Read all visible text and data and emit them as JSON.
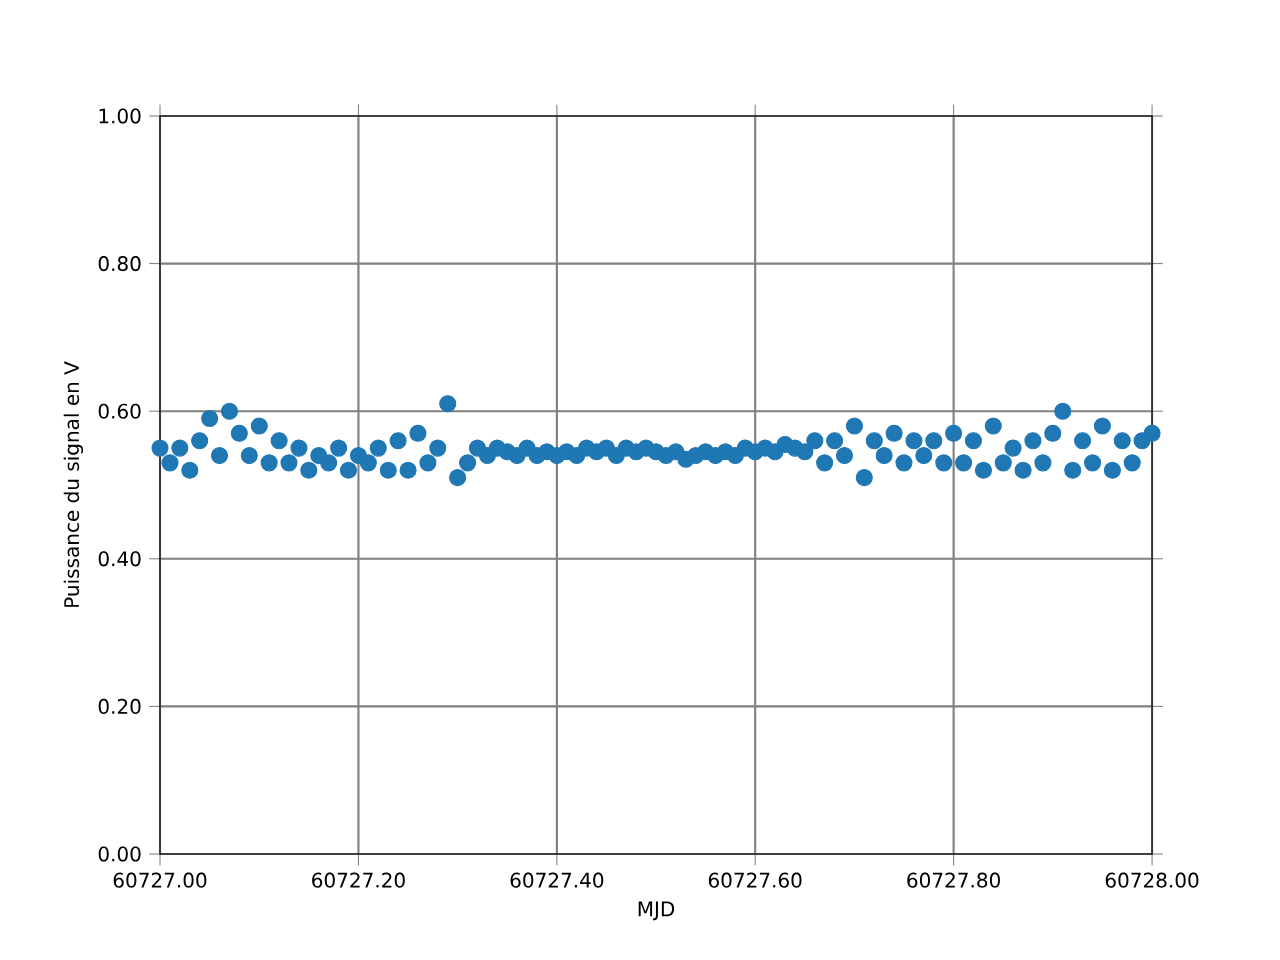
{
  "chart_data": {
    "type": "scatter",
    "xlabel": "MJD",
    "ylabel": "Puissance du signal en V",
    "x": [
      60727.0,
      60727.01,
      60727.02,
      60727.03,
      60727.04,
      60727.05,
      60727.06,
      60727.07,
      60727.08,
      60727.09,
      60727.1,
      60727.11,
      60727.12,
      60727.13,
      60727.14,
      60727.15,
      60727.16,
      60727.17,
      60727.18,
      60727.19,
      60727.2,
      60727.21,
      60727.22,
      60727.23,
      60727.24,
      60727.25,
      60727.26,
      60727.27,
      60727.28,
      60727.29,
      60727.3,
      60727.31,
      60727.32,
      60727.33,
      60727.34,
      60727.35,
      60727.36,
      60727.37,
      60727.38,
      60727.39,
      60727.4,
      60727.41,
      60727.42,
      60727.43,
      60727.44,
      60727.45,
      60727.46,
      60727.47,
      60727.48,
      60727.49,
      60727.5,
      60727.51,
      60727.52,
      60727.53,
      60727.54,
      60727.55,
      60727.56,
      60727.57,
      60727.58,
      60727.59,
      60727.6,
      60727.61,
      60727.62,
      60727.63,
      60727.64,
      60727.65,
      60727.66,
      60727.67,
      60727.68,
      60727.69,
      60727.7,
      60727.71,
      60727.72,
      60727.73,
      60727.74,
      60727.75,
      60727.76,
      60727.77,
      60727.78,
      60727.79,
      60727.8,
      60727.81,
      60727.82,
      60727.83,
      60727.84,
      60727.85,
      60727.86,
      60727.87,
      60727.88,
      60727.89,
      60727.9,
      60727.91,
      60727.92,
      60727.93,
      60727.94,
      60727.95,
      60727.96,
      60727.97,
      60727.98,
      60727.99,
      60728.0
    ],
    "values": [
      0.55,
      0.53,
      0.55,
      0.52,
      0.56,
      0.59,
      0.54,
      0.6,
      0.57,
      0.54,
      0.58,
      0.53,
      0.56,
      0.53,
      0.55,
      0.52,
      0.54,
      0.53,
      0.55,
      0.52,
      0.54,
      0.53,
      0.55,
      0.52,
      0.56,
      0.52,
      0.57,
      0.53,
      0.55,
      0.61,
      0.51,
      0.53,
      0.55,
      0.54,
      0.55,
      0.545,
      0.54,
      0.55,
      0.54,
      0.545,
      0.54,
      0.545,
      0.54,
      0.55,
      0.545,
      0.55,
      0.54,
      0.55,
      0.545,
      0.55,
      0.545,
      0.54,
      0.545,
      0.535,
      0.54,
      0.545,
      0.54,
      0.545,
      0.54,
      0.55,
      0.545,
      0.55,
      0.545,
      0.555,
      0.55,
      0.545,
      0.56,
      0.53,
      0.56,
      0.54,
      0.58,
      0.51,
      0.56,
      0.54,
      0.57,
      0.53,
      0.56,
      0.54,
      0.56,
      0.53,
      0.57,
      0.53,
      0.56,
      0.52,
      0.58,
      0.53,
      0.55,
      0.52,
      0.56,
      0.53,
      0.57,
      0.6,
      0.52,
      0.56,
      0.53,
      0.58,
      0.52,
      0.56,
      0.53,
      0.56,
      0.57
    ],
    "color": "#1f77b4",
    "marker": "circle",
    "grid": true,
    "xlim": [
      60727.0,
      60728.0
    ],
    "xticks": [
      {
        "value": 60727.0,
        "label": "60727.00"
      },
      {
        "value": 60727.2,
        "label": "60727.20"
      },
      {
        "value": 60727.4,
        "label": "60727.40"
      },
      {
        "value": 60727.6,
        "label": "60727.60"
      },
      {
        "value": 60727.8,
        "label": "60727.80"
      },
      {
        "value": 60728.0,
        "label": "60728.00"
      }
    ],
    "ylim": [
      0.0,
      1.0
    ],
    "yticks": [
      {
        "value": 0.0,
        "label": "0.00"
      },
      {
        "value": 0.2,
        "label": "0.20"
      },
      {
        "value": 0.4,
        "label": "0.40"
      },
      {
        "value": 0.6,
        "label": "0.60"
      },
      {
        "value": 0.8,
        "label": "0.80"
      },
      {
        "value": 1.0,
        "label": "1.00"
      }
    ]
  }
}
